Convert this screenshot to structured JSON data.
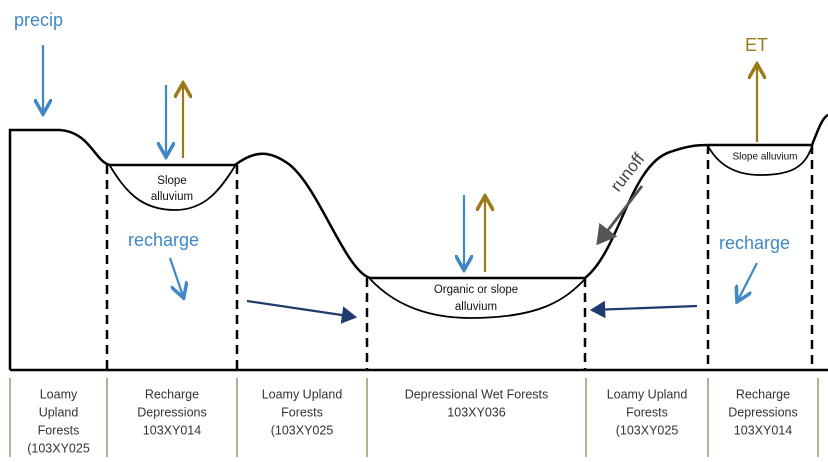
{
  "labels": {
    "precip": "precip",
    "et": "ET",
    "runoff": "runoff",
    "recharge_left": "recharge",
    "recharge_right": "recharge",
    "basin_left": [
      "Slope",
      "alluvium"
    ],
    "basin_center": [
      "Organic or slope",
      "alluvium"
    ],
    "basin_right": [
      "Slope alluvium"
    ]
  },
  "columns": [
    {
      "lines": [
        "Loamy",
        "Upland",
        "Forests",
        "(103XY025"
      ]
    },
    {
      "lines": [
        "Recharge",
        "Depressions",
        "103XY014"
      ]
    },
    {
      "lines": [
        "Loamy Upland",
        "Forests",
        "(103XY025"
      ]
    },
    {
      "lines": [
        "Depressional Wet Forests",
        "103XY036"
      ]
    },
    {
      "lines": [
        "Loamy Upland",
        "Forests",
        "(103XY025"
      ]
    },
    {
      "lines": [
        "Recharge",
        "Depressions",
        "103XY014"
      ]
    }
  ]
}
